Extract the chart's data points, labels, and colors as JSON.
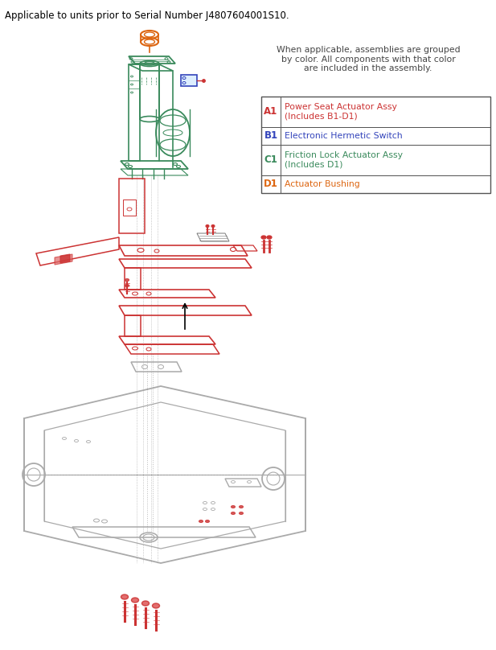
{
  "title_text": "Applicable to units prior to Serial Number J4807604001S10.",
  "legend_header": "When applicable, assemblies are grouped\nby color. All components with that color\nare included in the assembly.",
  "bg_color": "#ffffff",
  "green_color": "#3a8a5c",
  "red_color": "#cc3333",
  "blue_color": "#3344bb",
  "orange_color": "#dd6611",
  "gray_color": "#aaaaaa",
  "dark_gray": "#777777",
  "table_items": [
    {
      "code": "A1",
      "label": "Power Seat Actuator Assy\n(Includes B1-D1)",
      "color": "#cc3333"
    },
    {
      "code": "B1",
      "label": "Electronic Hermetic Switch",
      "color": "#3344bb"
    },
    {
      "code": "C1",
      "label": "Friction Lock Actuator Assy\n(Includes D1)",
      "color": "#3a8a5c"
    },
    {
      "code": "D1",
      "label": "Actuator Bushing",
      "color": "#dd6611"
    }
  ]
}
